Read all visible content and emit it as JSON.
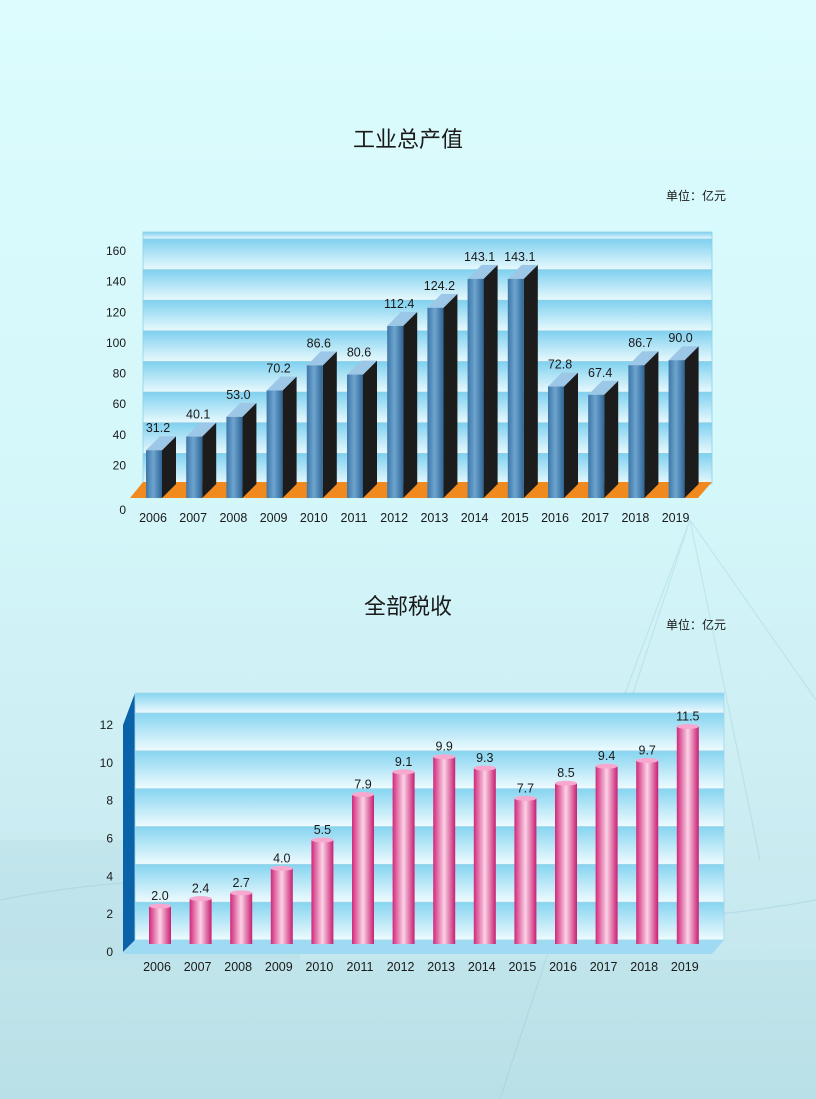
{
  "chart_data": [
    {
      "type": "bar",
      "title": "工业总产值",
      "unit": "单位：亿元",
      "categories": [
        "2006",
        "2007",
        "2008",
        "2009",
        "2010",
        "2011",
        "2012",
        "2013",
        "2014",
        "2015",
        "2016",
        "2017",
        "2018",
        "2019"
      ],
      "values": [
        31.2,
        40.1,
        53.0,
        70.2,
        86.6,
        80.6,
        112.4,
        124.2,
        143.1,
        143.1,
        72.8,
        67.4,
        86.7,
        90.0
      ],
      "value_labels": [
        "31.2",
        "40.1",
        "53.0",
        "70.2",
        "86.6",
        "80.6",
        "112.4",
        "124.2",
        "143.1",
        "143.1",
        "72.8",
        "67.4",
        "86.7",
        "90.0"
      ],
      "ylim": [
        0,
        160
      ],
      "yticks": [
        0,
        20,
        40,
        60,
        80,
        100,
        120,
        140,
        160
      ],
      "grid": true,
      "colors": {
        "bar_front": "#4a86b8",
        "bar_side": "#1c1c1c",
        "floor": "#f08a1e"
      }
    },
    {
      "type": "bar",
      "title": "全部税收",
      "unit": "单位：亿元",
      "categories": [
        "2006",
        "2007",
        "2008",
        "2009",
        "2010",
        "2011",
        "2012",
        "2013",
        "2014",
        "2015",
        "2016",
        "2017",
        "2018",
        "2019"
      ],
      "values": [
        2.0,
        2.4,
        2.7,
        4.0,
        5.5,
        7.9,
        9.1,
        9.9,
        9.3,
        7.7,
        8.5,
        9.4,
        9.7,
        11.5
      ],
      "value_labels": [
        "2.0",
        "2.4",
        "2.7",
        "4.0",
        "5.5",
        "7.9",
        "9.1",
        "9.9",
        "9.3",
        "7.7",
        "8.5",
        "9.4",
        "9.7",
        "11.5"
      ],
      "ylim": [
        0,
        12
      ],
      "yticks": [
        0,
        2,
        4,
        6,
        8,
        10,
        12
      ],
      "grid": true,
      "colors": {
        "bar": "#e23a8c",
        "wall": "#0a63a8"
      }
    }
  ]
}
